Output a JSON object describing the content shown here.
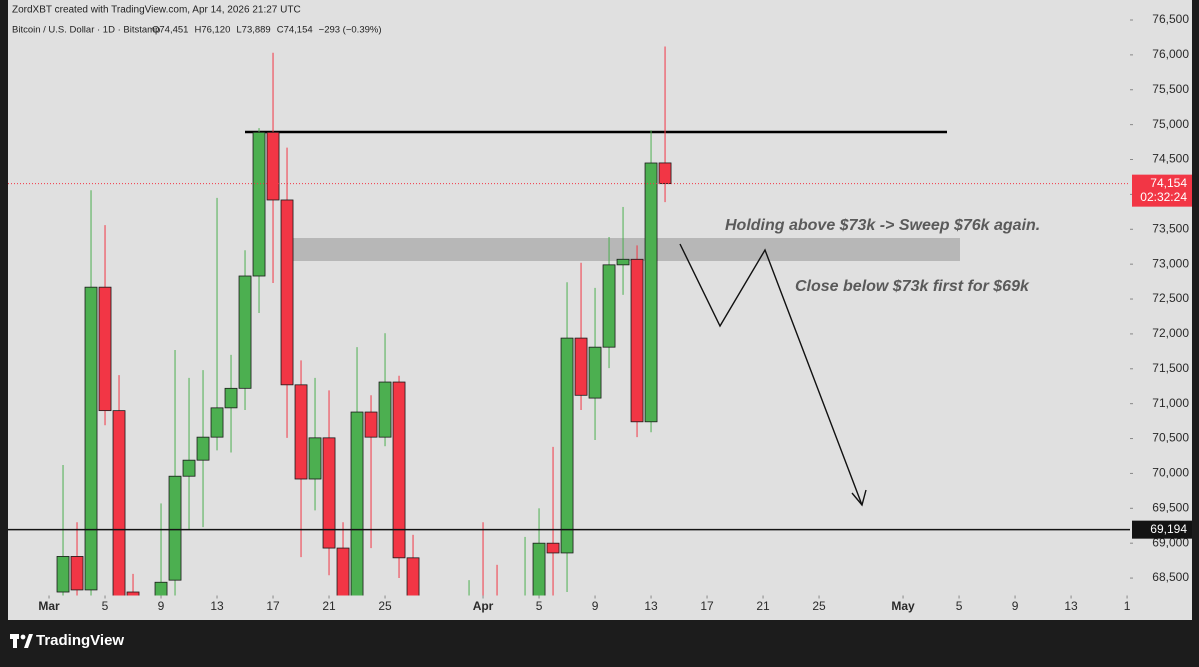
{
  "chart_data": {
    "type": "candlestick",
    "credit": "ZordXBT created with TradingView.com, Apr 14, 2026 21:27 UTC",
    "title": "Bitcoin / U.S. Dollar · 1D · Bitstamp",
    "ohlc_legend": [
      "O74,451",
      "H76,120",
      "L73,889",
      "C74,154",
      "−293 (−0.39%)"
    ],
    "annotations": [
      "Holding above $73k -> Sweep $76k again.",
      "Close below $73k first for $69k"
    ],
    "logo": "TradingView",
    "up_color": "#4caf50",
    "down_color": "#f23645",
    "x": [
      2,
      3,
      4,
      5,
      6,
      7,
      9,
      10,
      11,
      12,
      13,
      14,
      15,
      16,
      17,
      18,
      19,
      20,
      21,
      22,
      23,
      24,
      25,
      26,
      27,
      31,
      32,
      33,
      35,
      36,
      37,
      38,
      39,
      40,
      41,
      42,
      43,
      44,
      45
    ],
    "open": [
      68300,
      68810,
      68330,
      72670,
      70900,
      68300,
      68200,
      68470,
      69960,
      70190,
      70520,
      70940,
      71220,
      72830,
      74890,
      73920,
      71270,
      69920,
      70510,
      68930,
      68150,
      70880,
      70520,
      71310,
      68790,
      67900,
      68100,
      68100,
      67900,
      68150,
      69000,
      68860,
      71940,
      71080,
      71810,
      72990,
      73070,
      70740,
      74451
    ],
    "high": [
      70120,
      69300,
      74060,
      73560,
      71410,
      68560,
      69570,
      71770,
      71370,
      71480,
      73950,
      71700,
      73200,
      74950,
      76030,
      74670,
      71620,
      71370,
      71190,
      69300,
      71810,
      71120,
      72010,
      71400,
      69120,
      68470,
      69300,
      68690,
      69090,
      69500,
      70380,
      72740,
      73020,
      72660,
      73390,
      73820,
      73270,
      74920,
      76120
    ],
    "low": [
      68100,
      68100,
      68200,
      70690,
      67900,
      68000,
      68100,
      68200,
      69190,
      69230,
      70330,
      70300,
      70910,
      72300,
      72730,
      70510,
      68800,
      69470,
      68540,
      68100,
      68000,
      68930,
      70390,
      68500,
      68100,
      67800,
      67800,
      67800,
      67800,
      68000,
      68250,
      68300,
      70910,
      70480,
      71510,
      72560,
      70520,
      70590,
      73889
    ],
    "close": [
      68810,
      68330,
      72670,
      70900,
      68100,
      68100,
      68440,
      69960,
      70190,
      70520,
      70940,
      71220,
      72830,
      74890,
      73920,
      71270,
      69920,
      70510,
      68930,
      68150,
      70880,
      70520,
      71310,
      68790,
      68200,
      68100,
      67900,
      67900,
      68200,
      69000,
      68860,
      71940,
      71120,
      71810,
      72990,
      73070,
      70740,
      74450,
      74154
    ],
    "xlim": [
      -1.93,
      78.21
    ],
    "xticks": [
      {
        "value": 1,
        "label": "Mar"
      },
      {
        "value": 5,
        "label": "5"
      },
      {
        "value": 9,
        "label": "9"
      },
      {
        "value": 13,
        "label": "13"
      },
      {
        "value": 17,
        "label": "17"
      },
      {
        "value": 21,
        "label": "21"
      },
      {
        "value": 25,
        "label": "25"
      },
      {
        "value": 32,
        "label": "Apr"
      },
      {
        "value": 36,
        "label": "5"
      },
      {
        "value": 40,
        "label": "9"
      },
      {
        "value": 44,
        "label": "13"
      },
      {
        "value": 48,
        "label": "17"
      },
      {
        "value": 52,
        "label": "21"
      },
      {
        "value": 56,
        "label": "25"
      },
      {
        "value": 62,
        "label": "May"
      },
      {
        "value": 66,
        "label": "5"
      },
      {
        "value": 70,
        "label": "9"
      },
      {
        "value": 74,
        "label": "13"
      },
      {
        "value": 78,
        "label": "1"
      }
    ],
    "ylim": [
      68250,
      76500
    ],
    "yticks": [
      {
        "value": 68500,
        "label": "68,500"
      },
      {
        "value": 69000,
        "label": "69,000"
      },
      {
        "value": 69500,
        "label": "69,500"
      },
      {
        "value": 70000,
        "label": "70,000"
      },
      {
        "value": 70500,
        "label": "70,500"
      },
      {
        "value": 71000,
        "label": "71,000"
      },
      {
        "value": 71500,
        "label": "71,500"
      },
      {
        "value": 72000,
        "label": "72,000"
      },
      {
        "value": 72500,
        "label": "72,500"
      },
      {
        "value": 73000,
        "label": "73,000"
      },
      {
        "value": 73500,
        "label": "73,500"
      },
      {
        "value": 74000,
        "label": "74,000"
      },
      {
        "value": 74500,
        "label": "74,500"
      },
      {
        "value": 75000,
        "label": "75,000"
      },
      {
        "value": 75500,
        "label": "75,500"
      },
      {
        "value": 76000,
        "label": "76,000"
      },
      {
        "value": 76500,
        "label": "76,500"
      }
    ],
    "price_lines": [
      {
        "value": 74154,
        "label": "74,154",
        "countdown": "02:32:24",
        "color": "#f23645"
      },
      {
        "value": 69194,
        "label": "69,194",
        "color": "#131313"
      }
    ]
  }
}
